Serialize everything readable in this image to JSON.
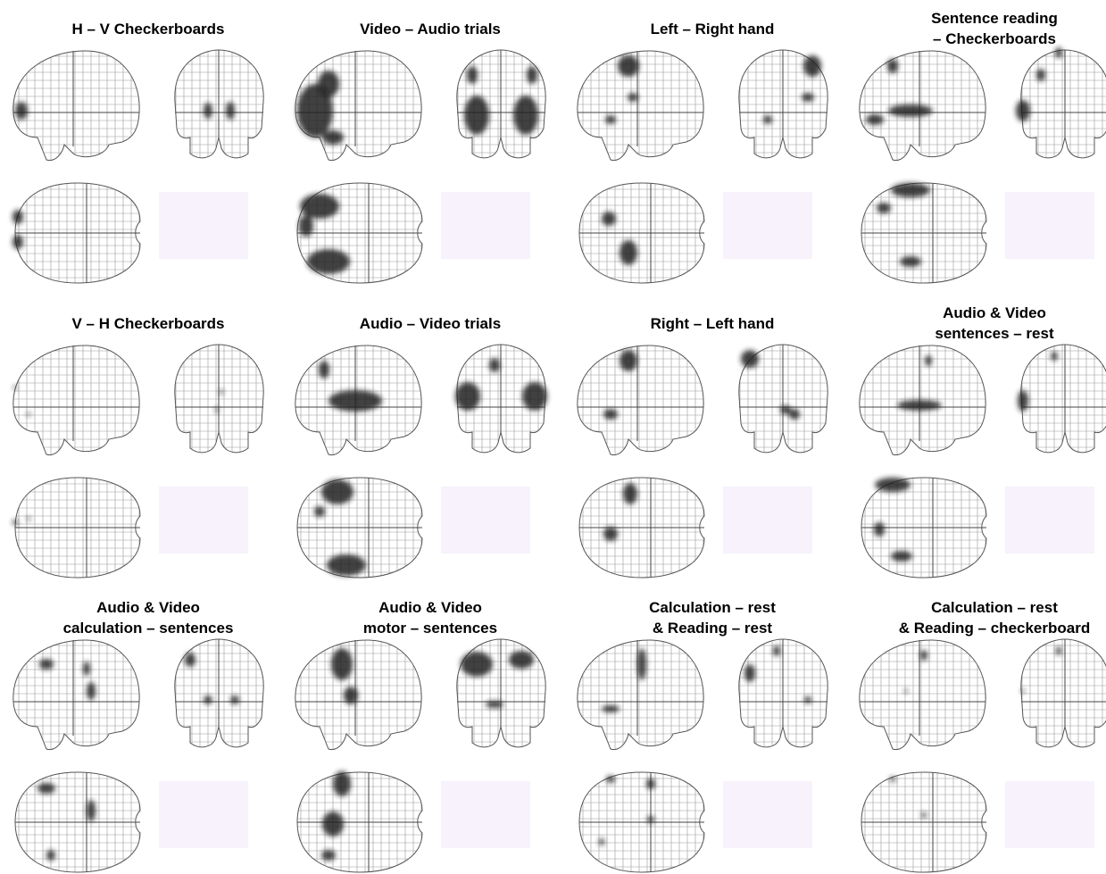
{
  "panels": [
    {
      "title_lines": [
        "H – V Checkerboards"
      ]
    },
    {
      "title_lines": [
        "Video – Audio trials"
      ]
    },
    {
      "title_lines": [
        "Left – Right hand"
      ]
    },
    {
      "title_lines": [
        "Sentence reading",
        "– Checkerboards"
      ]
    },
    {
      "title_lines": [
        "V – H Checkerboards"
      ]
    },
    {
      "title_lines": [
        "Audio – Video trials"
      ]
    },
    {
      "title_lines": [
        "Right – Left hand"
      ]
    },
    {
      "title_lines": [
        "Audio & Video",
        "sentences – rest"
      ]
    },
    {
      "title_lines": [
        "Audio & Video",
        "calculation – sentences"
      ]
    },
    {
      "title_lines": [
        "Audio & Video",
        "motor – sentences"
      ]
    },
    {
      "title_lines": [
        "Calculation – rest",
        "& Reading – rest"
      ]
    },
    {
      "title_lines": [
        "Calculation – rest",
        "& Reading –  checkerboard"
      ]
    }
  ]
}
